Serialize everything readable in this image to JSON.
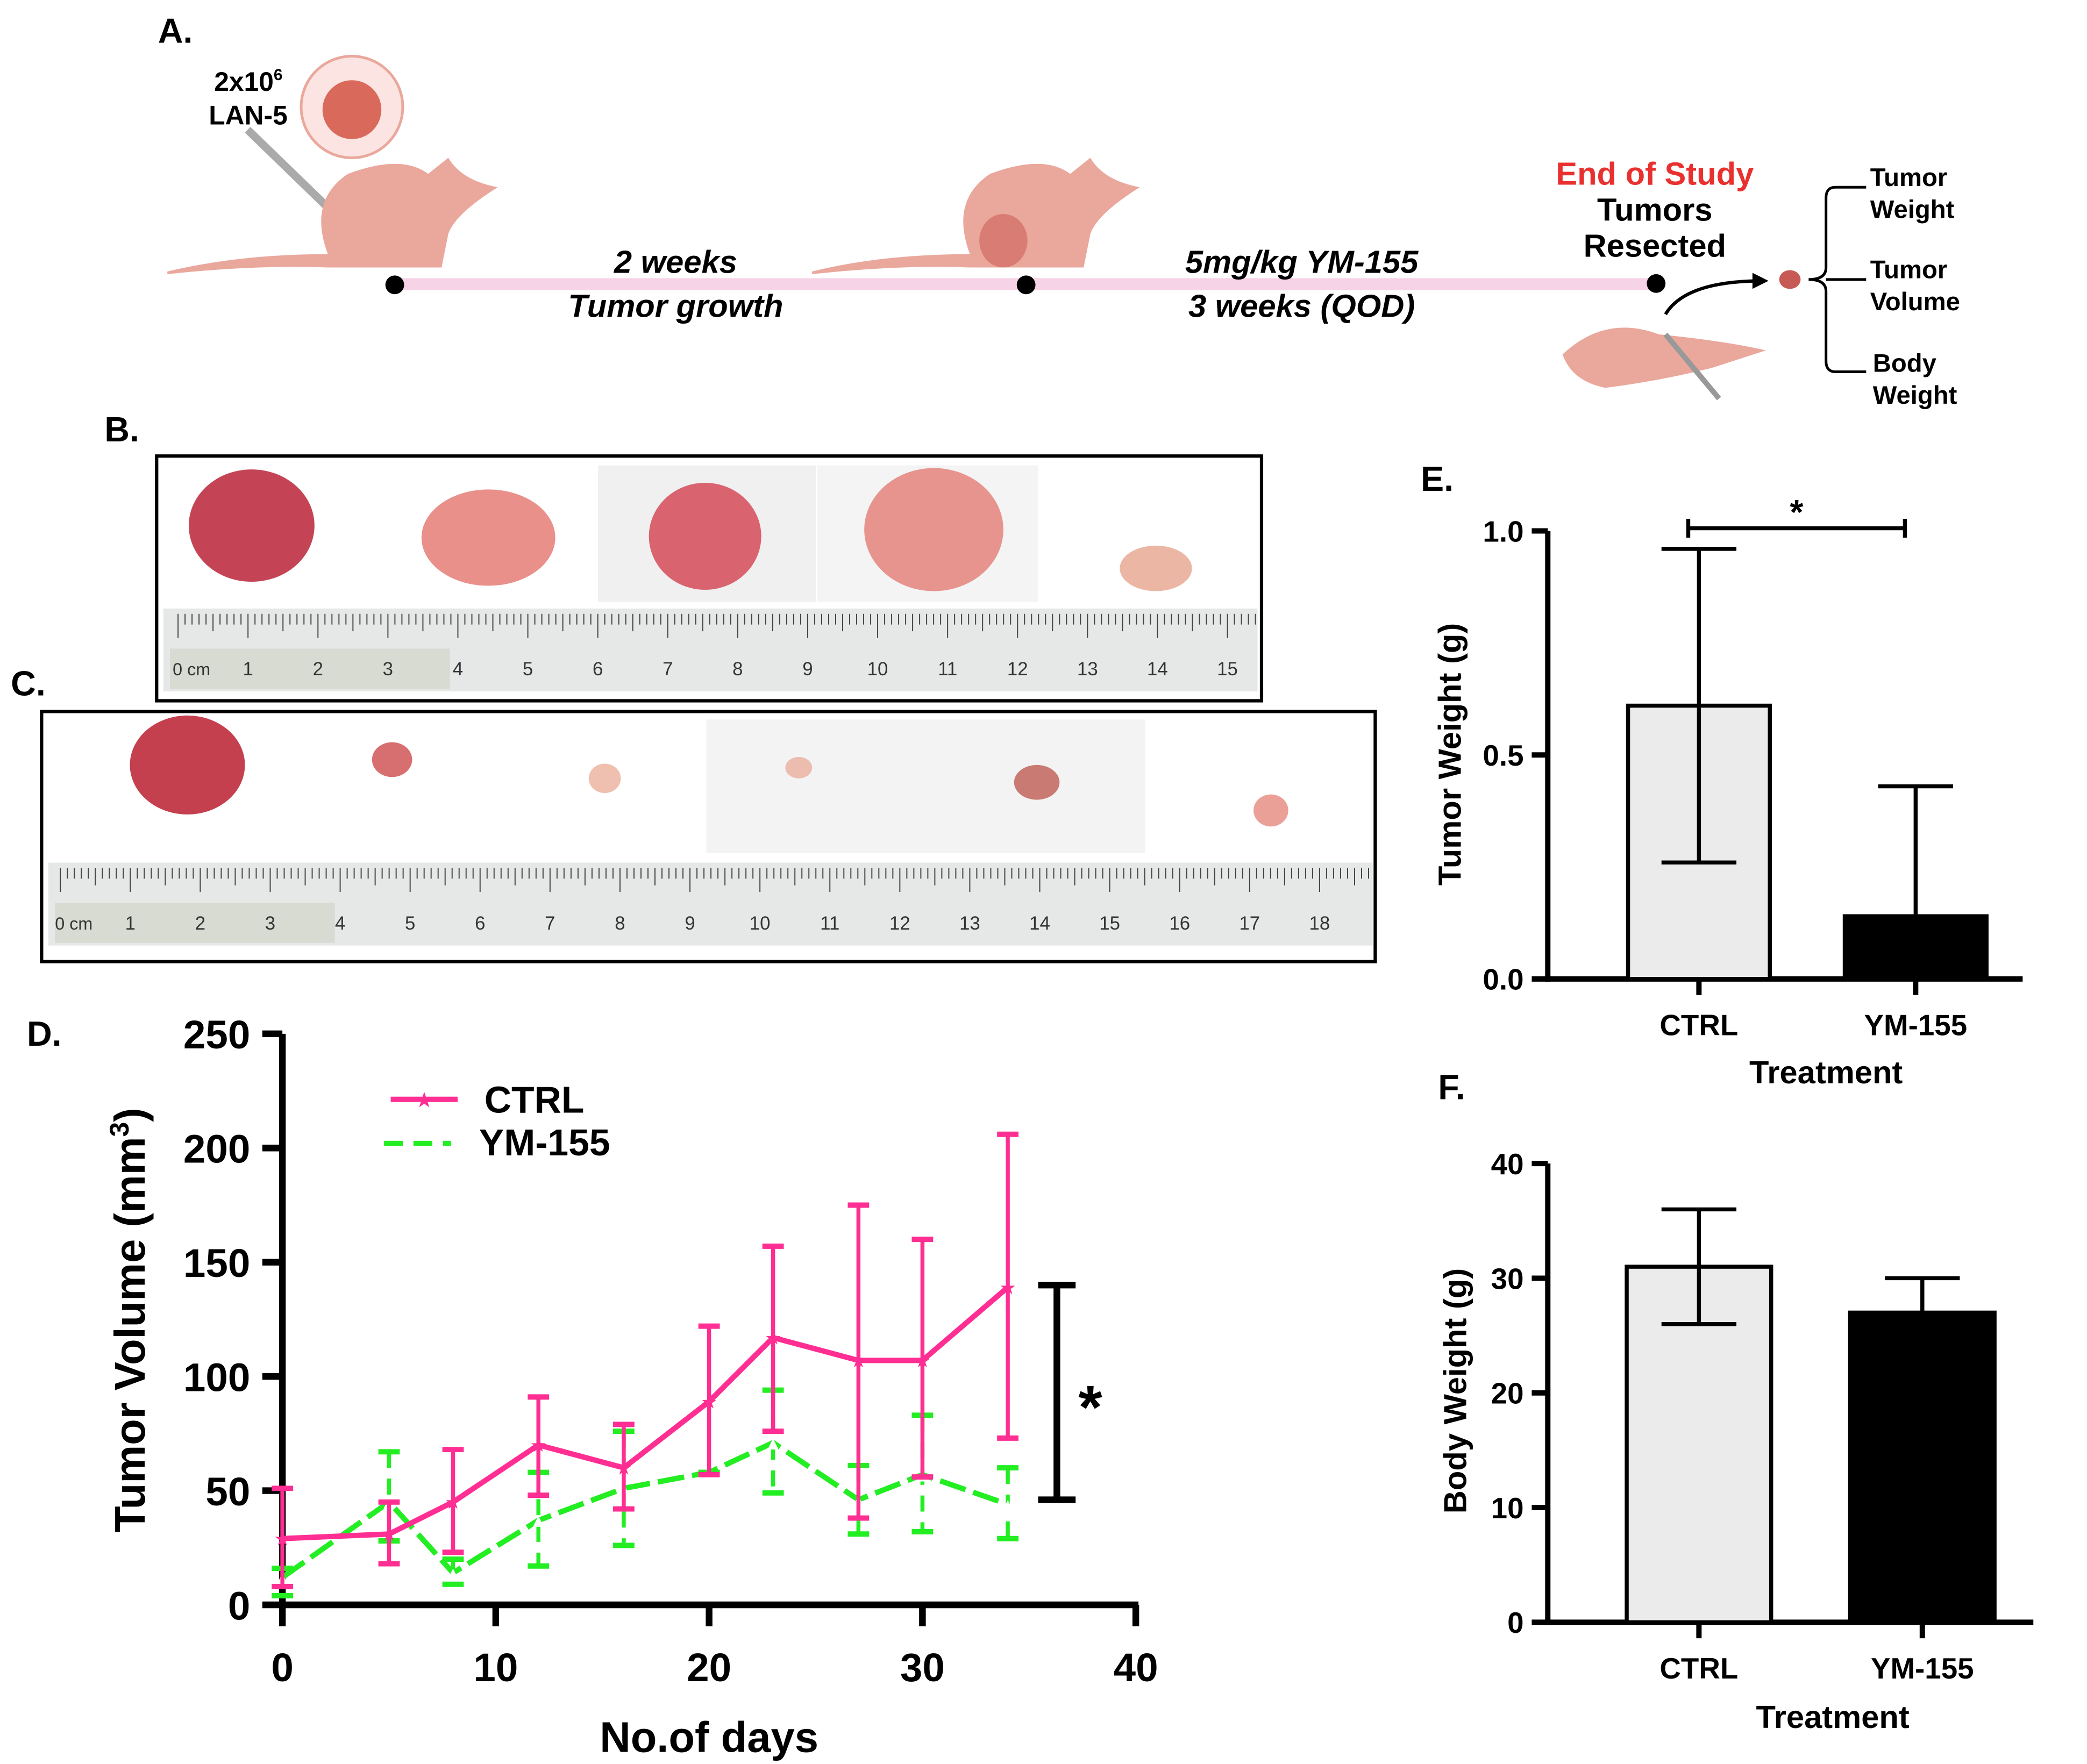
{
  "panel_labels": {
    "a": "A.",
    "b": "B.",
    "c": "C.",
    "d": "D.",
    "e": "E.",
    "f": "F."
  },
  "schematic": {
    "cells_line1": "2x10",
    "cells_sup": "6",
    "cells_line2": "LAN-5",
    "phase1_line1": "2 weeks",
    "phase1_line2": "Tumor growth",
    "phase2_line1": "5mg/kg YM-155",
    "phase2_line2": "3 weeks (QOD)",
    "end_title": "End of Study",
    "end_line1": "Tumors",
    "end_line2": "Resected",
    "outcomes": [
      {
        "line1": "Tumor",
        "line2": "Weight"
      },
      {
        "line1": "Tumor",
        "line2": "Volume"
      },
      {
        "line1": "Body",
        "line2": "Weight"
      }
    ],
    "colors": {
      "timeline": "#f6d3e6",
      "end_title": "#e8312f",
      "mouse": "#eaa79c"
    }
  },
  "ruler_b": {
    "unit": "0 cm",
    "labels": [
      "1",
      "2",
      "3",
      "4",
      "5",
      "6",
      "7",
      "8",
      "9",
      "10",
      "11",
      "12",
      "13",
      "14",
      "15"
    ]
  },
  "ruler_c": {
    "unit": "0 cm",
    "labels": [
      "1",
      "2",
      "3",
      "4",
      "5",
      "6",
      "7",
      "8",
      "9",
      "10",
      "11",
      "12",
      "13",
      "14",
      "15",
      "16",
      "17",
      "18"
    ]
  },
  "chart_data": [
    {
      "id": "D",
      "type": "line",
      "xlabel": "No.of days",
      "ylabel": "Tumor Volume (mm",
      "ylabel_sup": "3",
      "ylabel_end": ")",
      "xlim": [
        0,
        40
      ],
      "ylim": [
        0,
        250
      ],
      "xticks": [
        "0",
        "10",
        "20",
        "30",
        "40"
      ],
      "yticks": [
        "0",
        "50",
        "100",
        "150",
        "200",
        "250"
      ],
      "significance": "*",
      "significance_range": [
        46,
        140
      ],
      "legend": "top-left",
      "x": [
        0,
        5,
        8,
        12,
        16,
        20,
        23,
        27,
        30,
        34
      ],
      "series": [
        {
          "name": "CTRL",
          "color": "#ff2e93",
          "marker": "star",
          "values": [
            29,
            31,
            45,
            70,
            60,
            89,
            117,
            107,
            107,
            139
          ],
          "err_high": [
            51,
            45,
            68,
            91,
            79,
            122,
            157,
            175,
            160,
            206
          ],
          "err_low": [
            8,
            18,
            23,
            48,
            42,
            57,
            76,
            38,
            56,
            73
          ]
        },
        {
          "name": "YM-155",
          "color": "#22ee22",
          "marker": "triangle",
          "dashed": true,
          "values": [
            12,
            45,
            14,
            37,
            51,
            58,
            71,
            46,
            57,
            44
          ],
          "err_high": [
            16,
            67,
            20,
            58,
            76,
            58,
            94,
            61,
            83,
            60
          ],
          "err_low": [
            4,
            28,
            9,
            17,
            26,
            58,
            49,
            31,
            32,
            29
          ]
        }
      ]
    },
    {
      "id": "E",
      "type": "bar",
      "categories": [
        "CTRL",
        "YM-155"
      ],
      "values": [
        0.61,
        0.14
      ],
      "err_high": [
        0.96,
        0.43
      ],
      "err_low": [
        0.26,
        null
      ],
      "colors": [
        "#ebebeb",
        "#000000"
      ],
      "xlabel": "Treatment",
      "ylabel": "Tumor Weight (g)",
      "ylim": [
        0,
        1.0
      ],
      "yticks": [
        "0.0",
        "0.5",
        "1.0"
      ],
      "significance": "*"
    },
    {
      "id": "F",
      "type": "bar",
      "categories": [
        "CTRL",
        "YM-155"
      ],
      "values": [
        31,
        27
      ],
      "err_high": [
        36,
        30
      ],
      "err_low": [
        26,
        null
      ],
      "colors": [
        "#ebebeb",
        "#000000"
      ],
      "xlabel": "Treatment",
      "ylabel": "Body Weight (g)",
      "ylim": [
        0,
        40
      ],
      "yticks": [
        "0",
        "10",
        "20",
        "30",
        "40"
      ]
    }
  ]
}
